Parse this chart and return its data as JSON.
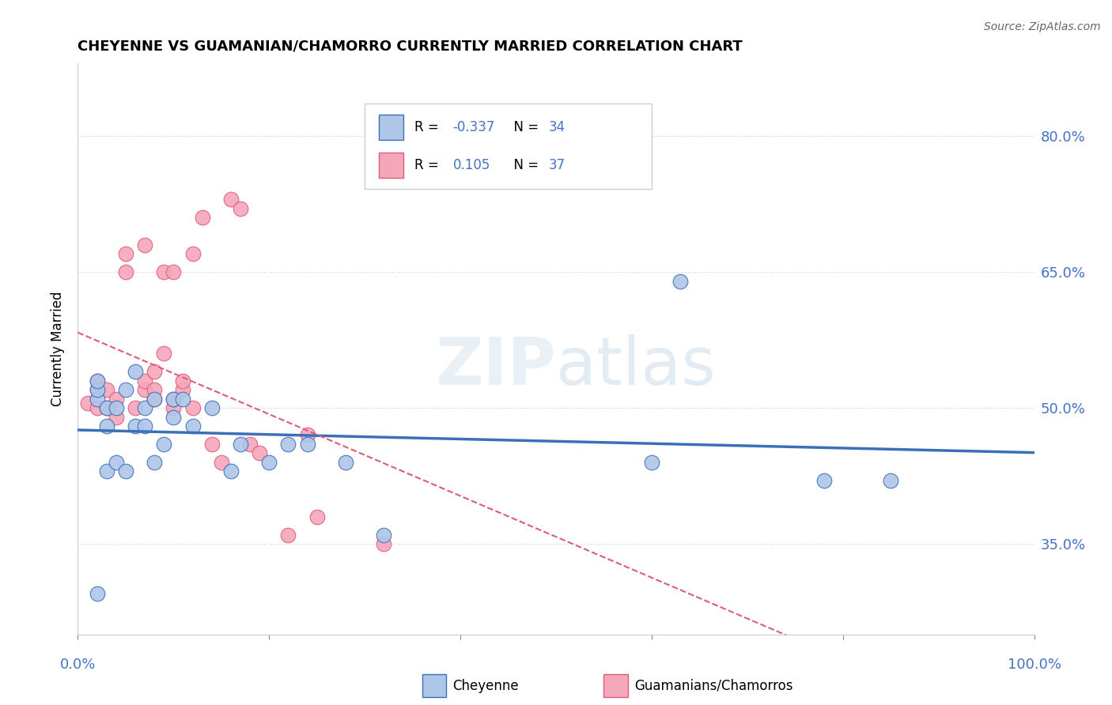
{
  "title": "CHEYENNE VS GUAMANIAN/CHAMORRO CURRENTLY MARRIED CORRELATION CHART",
  "source": "Source: ZipAtlas.com",
  "ylabel": "Currently Married",
  "ytick_labels": [
    "35.0%",
    "50.0%",
    "65.0%",
    "80.0%"
  ],
  "ytick_values": [
    0.35,
    0.5,
    0.65,
    0.8
  ],
  "xlim": [
    0.0,
    1.0
  ],
  "ylim": [
    0.25,
    0.88
  ],
  "legend_label1": "Cheyenne",
  "legend_label2": "Guamanians/Chamorros",
  "R1": -0.337,
  "N1": 34,
  "R2": 0.105,
  "N2": 37,
  "cheyenne_color": "#aec6e8",
  "guamanian_color": "#f4a7b9",
  "line1_color": "#3b6fba",
  "line2_color": "#e05a7a",
  "value_color": "#4472c4",
  "cheyenne_x": [
    0.02,
    0.02,
    0.02,
    0.02,
    0.03,
    0.03,
    0.03,
    0.04,
    0.04,
    0.05,
    0.05,
    0.06,
    0.06,
    0.07,
    0.07,
    0.08,
    0.08,
    0.09,
    0.1,
    0.1,
    0.11,
    0.12,
    0.14,
    0.16,
    0.17,
    0.2,
    0.22,
    0.24,
    0.28,
    0.32,
    0.6,
    0.63,
    0.78,
    0.85
  ],
  "cheyenne_y": [
    0.295,
    0.51,
    0.52,
    0.53,
    0.43,
    0.48,
    0.5,
    0.44,
    0.5,
    0.43,
    0.52,
    0.48,
    0.54,
    0.48,
    0.5,
    0.44,
    0.51,
    0.46,
    0.49,
    0.51,
    0.51,
    0.48,
    0.5,
    0.43,
    0.46,
    0.44,
    0.46,
    0.46,
    0.44,
    0.36,
    0.44,
    0.64,
    0.42,
    0.42
  ],
  "guamanian_x": [
    0.01,
    0.02,
    0.02,
    0.02,
    0.03,
    0.03,
    0.04,
    0.04,
    0.05,
    0.05,
    0.06,
    0.07,
    0.07,
    0.07,
    0.08,
    0.08,
    0.08,
    0.09,
    0.09,
    0.1,
    0.1,
    0.1,
    0.11,
    0.11,
    0.12,
    0.12,
    0.13,
    0.14,
    0.15,
    0.16,
    0.17,
    0.18,
    0.19,
    0.22,
    0.24,
    0.25,
    0.32
  ],
  "guamanian_y": [
    0.505,
    0.5,
    0.52,
    0.53,
    0.5,
    0.52,
    0.49,
    0.51,
    0.65,
    0.67,
    0.5,
    0.52,
    0.53,
    0.68,
    0.51,
    0.52,
    0.54,
    0.56,
    0.65,
    0.5,
    0.51,
    0.65,
    0.52,
    0.53,
    0.5,
    0.67,
    0.71,
    0.46,
    0.44,
    0.73,
    0.72,
    0.46,
    0.45,
    0.36,
    0.47,
    0.38,
    0.35
  ]
}
